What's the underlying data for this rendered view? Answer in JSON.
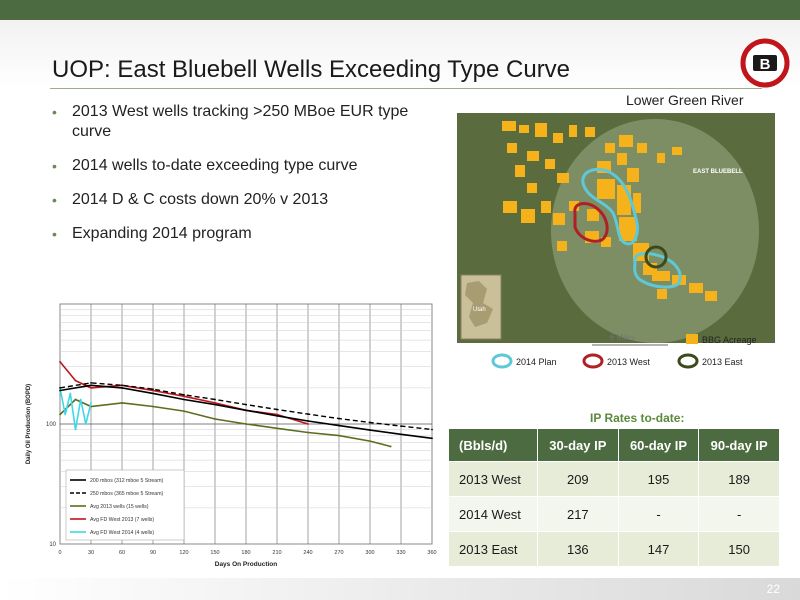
{
  "slide": {
    "title": "UOP: East Bluebell Wells Exceeding Type Curve",
    "page_number": "22",
    "accent_color": "#4d6b40",
    "logo_letter": "B"
  },
  "bullets": [
    "2013 West wells tracking >250 MBoe EUR type curve",
    "2014 wells to-date exceeding type curve",
    "2014 D & C costs down 20% v 2013",
    "Expanding 2014 program"
  ],
  "map": {
    "caption": "Lower Green River",
    "area_label": "EAST BLUEBELL",
    "inset_label": "Utah",
    "scale_label": "6 Miles",
    "legend": {
      "acreage": "BBG Acreage",
      "plan_2014": "2014 Plan",
      "west_2013": "2013 West",
      "east_2013": "2013 East"
    },
    "colors": {
      "acreage": "#f5b21a",
      "plan_2014": "#5ec8d8",
      "west_2013": "#b01f24",
      "east_2013": "#3b4a1c"
    }
  },
  "chart_data": {
    "type": "line",
    "title": "",
    "xlabel": "Days On Production",
    "ylabel": "Daily Oil Production (BOPD)",
    "x_ticks": [
      "0",
      "30",
      "60",
      "90",
      "120",
      "150",
      "180",
      "210",
      "240",
      "270",
      "300",
      "330",
      "360"
    ],
    "y_ticks": [
      "10",
      "100"
    ],
    "xlim": [
      0,
      360
    ],
    "y_scale": "log",
    "ylim": [
      10,
      1000
    ],
    "grid": true,
    "legend_position": "bottom-left",
    "series": [
      {
        "name": "200 mbos (312 mboe 5 Stream)",
        "color": "#000000",
        "style": "solid",
        "x": [
          0,
          30,
          60,
          90,
          120,
          150,
          180,
          210,
          240,
          270,
          300,
          330,
          360
        ],
        "y": [
          190,
          210,
          200,
          180,
          160,
          145,
          130,
          117,
          106,
          97,
          89,
          82,
          76
        ]
      },
      {
        "name": "250 mbos (365 mboe 5 Stream)",
        "color": "#000000",
        "style": "dashed",
        "x": [
          0,
          30,
          60,
          90,
          120,
          150,
          180,
          210,
          240,
          270,
          300,
          330,
          360
        ],
        "y": [
          200,
          220,
          210,
          195,
          175,
          160,
          145,
          132,
          121,
          111,
          103,
          96,
          90
        ]
      },
      {
        "name": "Avg 2013 wells (15 wells)",
        "color": "#5a6e1e",
        "style": "solid",
        "x": [
          0,
          15,
          30,
          60,
          90,
          120,
          150,
          180,
          210,
          240,
          270,
          300,
          320
        ],
        "y": [
          120,
          160,
          140,
          150,
          140,
          128,
          110,
          100,
          92,
          85,
          80,
          72,
          65
        ]
      },
      {
        "name": "Avg FD West 2013 (7 wells)",
        "color": "#c0161b",
        "style": "solid",
        "x": [
          0,
          15,
          30,
          60,
          90,
          120,
          150,
          180,
          210,
          240
        ],
        "y": [
          330,
          230,
          200,
          210,
          190,
          170,
          150,
          130,
          120,
          100
        ]
      },
      {
        "name": "Avg FD West 2014 (4 wells)",
        "color": "#3ed7e8",
        "style": "solid",
        "x": [
          0,
          5,
          10,
          15,
          20,
          25,
          30
        ],
        "y": [
          200,
          120,
          180,
          90,
          160,
          100,
          150
        ]
      }
    ]
  },
  "ip_table": {
    "caption": "IP Rates to-date:",
    "headers": [
      "(Bbls/d)",
      "30-day IP",
      "60-day IP",
      "90-day IP"
    ],
    "rows": [
      [
        "2013 West",
        "209",
        "195",
        "189"
      ],
      [
        "2014 West",
        "217",
        "-",
        "-"
      ],
      [
        "2013 East",
        "136",
        "147",
        "150"
      ]
    ]
  }
}
